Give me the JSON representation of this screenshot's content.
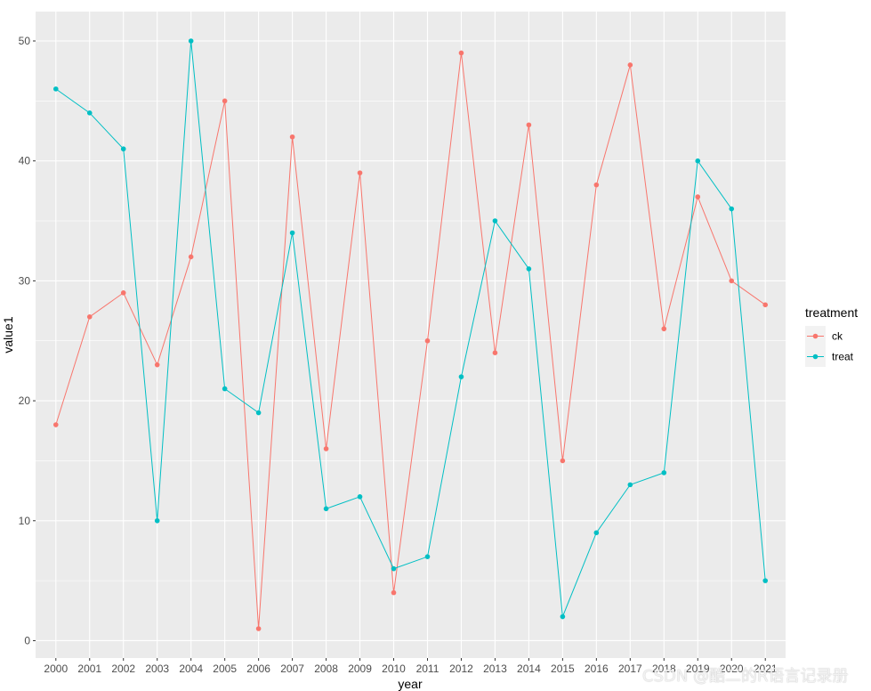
{
  "chart_data": {
    "type": "line",
    "xlabel": "year",
    "ylabel": "value1",
    "categories": [
      "2000",
      "2001",
      "2002",
      "2003",
      "2004",
      "2005",
      "2006",
      "2007",
      "2008",
      "2009",
      "2010",
      "2011",
      "2012",
      "2013",
      "2014",
      "2015",
      "2016",
      "2017",
      "2018",
      "2019",
      "2020",
      "2021"
    ],
    "yticks": [
      0,
      10,
      20,
      30,
      40,
      50
    ],
    "ylim": [
      -1.45,
      52.45
    ],
    "grid": true,
    "legend": {
      "title": "treatment",
      "position": "right"
    },
    "series": [
      {
        "name": "ck",
        "color": "#F8766D",
        "values": [
          18,
          27,
          29,
          23,
          32,
          45,
          1,
          42,
          16,
          39,
          4,
          25,
          49,
          24,
          43,
          15,
          38,
          48,
          26,
          37,
          30,
          28
        ]
      },
      {
        "name": "treat",
        "color": "#00BFC4",
        "values": [
          46,
          44,
          41,
          10,
          50,
          21,
          19,
          34,
          11,
          12,
          6,
          7,
          22,
          35,
          31,
          2,
          9,
          13,
          14,
          40,
          36,
          5
        ]
      }
    ]
  },
  "watermark": "CSDN @酷二的R语言记录册"
}
